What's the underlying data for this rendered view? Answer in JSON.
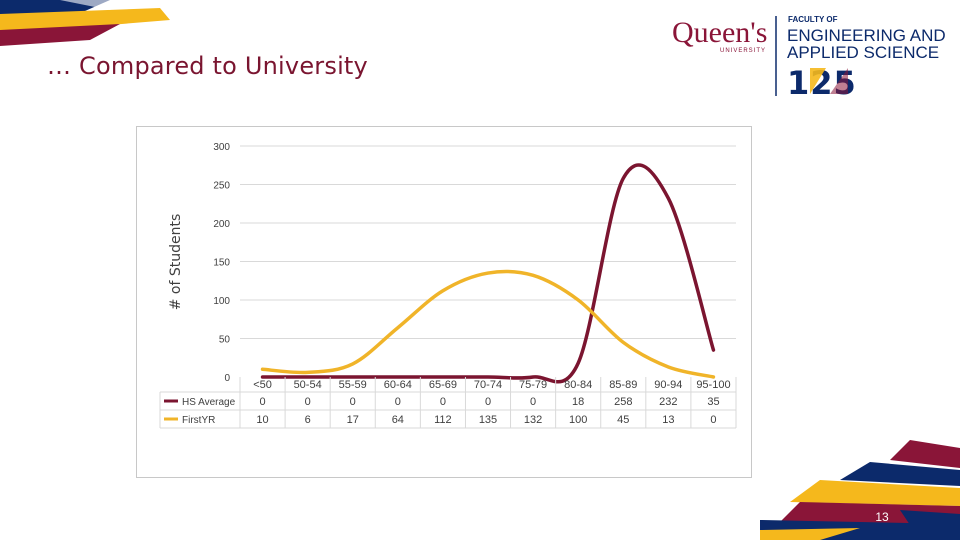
{
  "slide": {
    "title": "… Compared to University",
    "page_number": "13"
  },
  "logo": {
    "university": "Queen's",
    "university_sub": "UNIVERSITY",
    "faculty_of": "FACULTY OF",
    "faculty_line1": "ENGINEERING AND",
    "faculty_line2": "APPLIED SCIENCE",
    "anniversary": "125"
  },
  "colors": {
    "hs_average": "#7b1530",
    "first_yr": "#f0b429",
    "maroon": "#8a1538",
    "gold": "#f5b81c",
    "blue": "#0c2a6b"
  },
  "chart_data": {
    "type": "line",
    "ylabel": "# of Students",
    "xlabel": "",
    "ylim": [
      0,
      300
    ],
    "yticks": [
      0,
      50,
      100,
      150,
      200,
      250,
      300
    ],
    "grid": true,
    "legend": "data-table-below",
    "categories": [
      "<50",
      "50-54",
      "55-59",
      "60-64",
      "65-69",
      "70-74",
      "75-79",
      "80-84",
      "85-89",
      "90-94",
      "95-100"
    ],
    "series": [
      {
        "name": "HS Average",
        "values": [
          0,
          0,
          0,
          0,
          0,
          0,
          0,
          18,
          258,
          232,
          35
        ]
      },
      {
        "name": "FirstYR",
        "values": [
          10,
          6,
          17,
          64,
          112,
          135,
          132,
          100,
          45,
          13,
          0
        ]
      }
    ]
  }
}
